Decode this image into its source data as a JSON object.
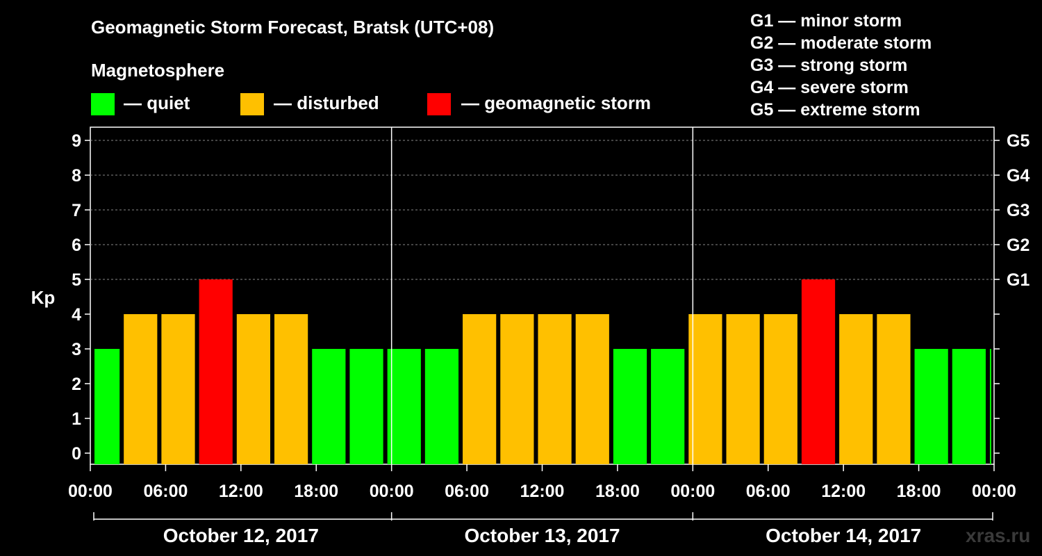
{
  "header": {
    "title": "Geomagnetic Storm Forecast, Bratsk (UTC+08)",
    "subtitle": "Magnetosphere"
  },
  "legend": [
    {
      "label": "— quiet",
      "color": "#00ff00"
    },
    {
      "label": "— disturbed",
      "color": "#ffc000"
    },
    {
      "label": "— geomagnetic storm",
      "color": "#ff0000"
    }
  ],
  "g_scale": [
    "G1 — minor storm",
    "G2 — moderate storm",
    "G3 — strong storm",
    "G4 — severe storm",
    "G5 — extreme storm"
  ],
  "watermark": "xras.ru",
  "chart_data": {
    "type": "bar",
    "title": "Geomagnetic Storm Forecast, Bratsk (UTC+08)",
    "ylabel": "Kp",
    "ylim": [
      0,
      9
    ],
    "yticks": [
      "0",
      "1",
      "2",
      "3",
      "4",
      "5",
      "6",
      "7",
      "8",
      "9"
    ],
    "right_ticks": [
      {
        "kp": 5,
        "label": "G1"
      },
      {
        "kp": 6,
        "label": "G2"
      },
      {
        "kp": 7,
        "label": "G3"
      },
      {
        "kp": 8,
        "label": "G4"
      },
      {
        "kp": 9,
        "label": "G5"
      }
    ],
    "xticks": [
      "00:00",
      "06:00",
      "12:00",
      "18:00",
      "00:00",
      "06:00",
      "12:00",
      "18:00",
      "00:00",
      "06:00",
      "12:00",
      "18:00",
      "00:00"
    ],
    "days": [
      "October 12, 2017",
      "October 13, 2017",
      "October 14, 2017"
    ],
    "interval_hours": 3,
    "start_hour": 1,
    "values": [
      3,
      4,
      4,
      5,
      4,
      4,
      3,
      3,
      3,
      3,
      4,
      4,
      4,
      4,
      3,
      3,
      4,
      4,
      4,
      5,
      4,
      4,
      3,
      3,
      3
    ],
    "colors": {
      "quiet": "#00ff00",
      "disturbed": "#ffc000",
      "storm": "#ff0000"
    },
    "thresholds": {
      "disturbed": 4,
      "storm": 5
    },
    "grid": true
  }
}
